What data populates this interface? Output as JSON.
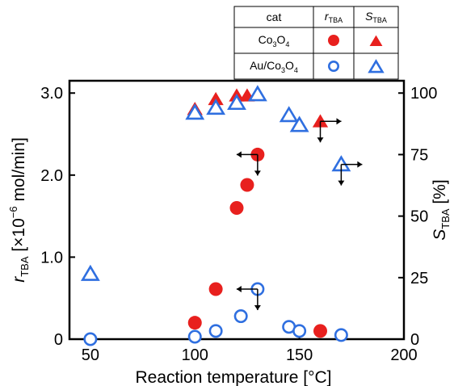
{
  "chart_data": {
    "type": "scatter",
    "xlabel": "Reaction temperature [°C]",
    "xlim": [
      40,
      200
    ],
    "x_ticks": [
      "50",
      "100",
      "150",
      "200"
    ],
    "ylabel_left": {
      "main": "r",
      "sub": "TBA",
      "rest": " [×10",
      "sup": "−6",
      "unit": " mol/min]"
    },
    "ylim_left": [
      0,
      3.15
    ],
    "y_ticks_left": [
      "0",
      "1.0",
      "2.0",
      "3.0"
    ],
    "ylabel_right": {
      "main": "S",
      "sub": "TBA",
      "rest": " [%]"
    },
    "ylim_right": [
      0,
      105
    ],
    "y_ticks_right": [
      "0",
      "25",
      "50",
      "75",
      "100"
    ],
    "legend": {
      "header": {
        "cat": "cat",
        "r_main": "r",
        "r_sub": "TBA",
        "s_main": "S",
        "s_sub": "TBA"
      },
      "rows": [
        {
          "label_parts": [
            "Co",
            "3",
            "O",
            "4"
          ],
          "r_marker": "filled-circle",
          "s_marker": "filled-triangle"
        },
        {
          "label_parts": [
            "Au/Co",
            "3",
            "O",
            "4"
          ],
          "r_marker": "open-circle",
          "s_marker": "open-triangle"
        }
      ]
    },
    "series": [
      {
        "name": "Co3O4",
        "metric": "r_TBA",
        "axis": "left",
        "marker": "filled-circle",
        "color": "#e8201e",
        "x": [
          100,
          110,
          120,
          125,
          130,
          160
        ],
        "y": [
          0.2,
          0.61,
          1.6,
          1.88,
          2.25,
          0.1
        ]
      },
      {
        "name": "Au/Co3O4",
        "metric": "r_TBA",
        "axis": "left",
        "marker": "open-circle",
        "color": "#2f6fe0",
        "x": [
          50,
          100,
          110,
          122,
          130,
          145,
          150,
          170
        ],
        "y": [
          0.0,
          0.03,
          0.1,
          0.28,
          0.61,
          0.15,
          0.1,
          0.05
        ]
      },
      {
        "name": "Co3O4",
        "metric": "S_TBA",
        "axis": "right",
        "marker": "filled-triangle",
        "color": "#e8201e",
        "x": [
          100,
          110,
          120,
          125,
          160
        ],
        "y": [
          93.5,
          97.5,
          99.0,
          99.0,
          88.5
        ]
      },
      {
        "name": "Au/Co3O4",
        "metric": "S_TBA",
        "axis": "right",
        "marker": "open-triangle",
        "color": "#2f6fe0",
        "x": [
          50,
          100,
          110,
          120,
          130,
          145,
          150,
          170
        ],
        "y": [
          26.5,
          92.0,
          94.0,
          96.0,
          99.5,
          91.0,
          87.0,
          71.0
        ]
      }
    ],
    "arrows": [
      {
        "x": 130,
        "y": 2.25,
        "axis": "left",
        "horizontal": "left",
        "vertical": "down"
      },
      {
        "x": 130,
        "y": 0.61,
        "axis": "left",
        "horizontal": "left",
        "vertical": "down"
      },
      {
        "x": 160,
        "y": 88.5,
        "axis": "right",
        "horizontal": "right",
        "vertical": "down"
      },
      {
        "x": 170,
        "y": 71.0,
        "axis": "right",
        "horizontal": "right",
        "vertical": "down"
      }
    ],
    "grid": false,
    "legend_position": "top-right, above plot"
  }
}
